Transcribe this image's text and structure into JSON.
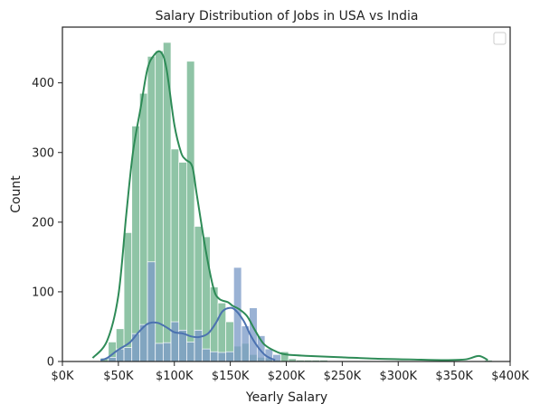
{
  "chart_data": {
    "type": "bar",
    "title": "Salary Distribution of Jobs in USA vs India",
    "xlabel": "Yearly Salary",
    "ylabel": "Count",
    "xlim": [
      0,
      400000
    ],
    "ylim": [
      0,
      480
    ],
    "x_ticks": [
      0,
      50000,
      100000,
      150000,
      200000,
      250000,
      300000,
      350000,
      400000
    ],
    "x_tick_labels": [
      "$0K",
      "$50K",
      "$100K",
      "$150K",
      "$200K",
      "$250K",
      "$300K",
      "$350K",
      "$400K"
    ],
    "y_ticks": [
      0,
      100,
      200,
      300,
      400
    ],
    "y_tick_labels": [
      "0",
      "100",
      "200",
      "300",
      "400"
    ],
    "grid": false,
    "legend": "top-right, empty",
    "bin_width": 7000,
    "series": [
      {
        "color": "#2e8b57",
        "bar_color": "#8fc4a6",
        "bins_start": 27000,
        "counts": [
          0,
          5,
          28,
          47,
          185,
          338,
          385,
          438,
          446,
          458,
          305,
          286,
          431,
          194,
          179,
          107,
          84,
          57,
          22,
          26,
          10,
          6,
          5,
          2,
          14,
          4,
          2,
          2,
          2,
          2,
          1,
          1,
          1,
          1,
          1,
          1,
          0,
          0,
          0,
          0,
          0,
          0,
          0,
          0,
          0,
          0,
          0,
          0,
          0,
          0,
          2
        ],
        "kde_x": [
          27000,
          40000,
          50000,
          57000,
          63000,
          70000,
          76000,
          82000,
          88000,
          93000,
          100000,
          106000,
          110000,
          116000,
          120000,
          128000,
          135000,
          140000,
          148000,
          152000,
          158000,
          165000,
          172000,
          180000,
          190000,
          200000,
          220000,
          250000,
          280000,
          310000,
          340000,
          360000,
          372000,
          380000
        ],
        "kde_y": [
          5,
          30,
          95,
          210,
          300,
          365,
          420,
          440,
          444,
          420,
          340,
          300,
          290,
          280,
          240,
          160,
          105,
          90,
          85,
          80,
          75,
          65,
          45,
          25,
          15,
          10,
          8,
          6,
          4,
          3,
          2,
          3,
          8,
          2
        ]
      },
      {
        "color": "#4c72b0",
        "bar_color": "#7e9cc8",
        "bins_start": 34000,
        "counts": [
          0,
          6,
          18,
          20,
          40,
          53,
          143,
          26,
          27,
          57,
          45,
          28,
          45,
          18,
          14,
          13,
          14,
          135,
          51,
          77,
          37,
          18,
          10
        ],
        "kde_x": [
          34000,
          40000,
          50000,
          60000,
          68000,
          75000,
          80000,
          86000,
          94000,
          100000,
          108000,
          115000,
          122000,
          130000,
          137000,
          143000,
          150000,
          155000,
          162000,
          168000,
          175000,
          182000,
          190000
        ],
        "kde_y": [
          2,
          5,
          17,
          27,
          42,
          53,
          56,
          55,
          48,
          42,
          40,
          36,
          35,
          40,
          55,
          72,
          77,
          73,
          58,
          38,
          20,
          8,
          2
        ]
      }
    ]
  }
}
